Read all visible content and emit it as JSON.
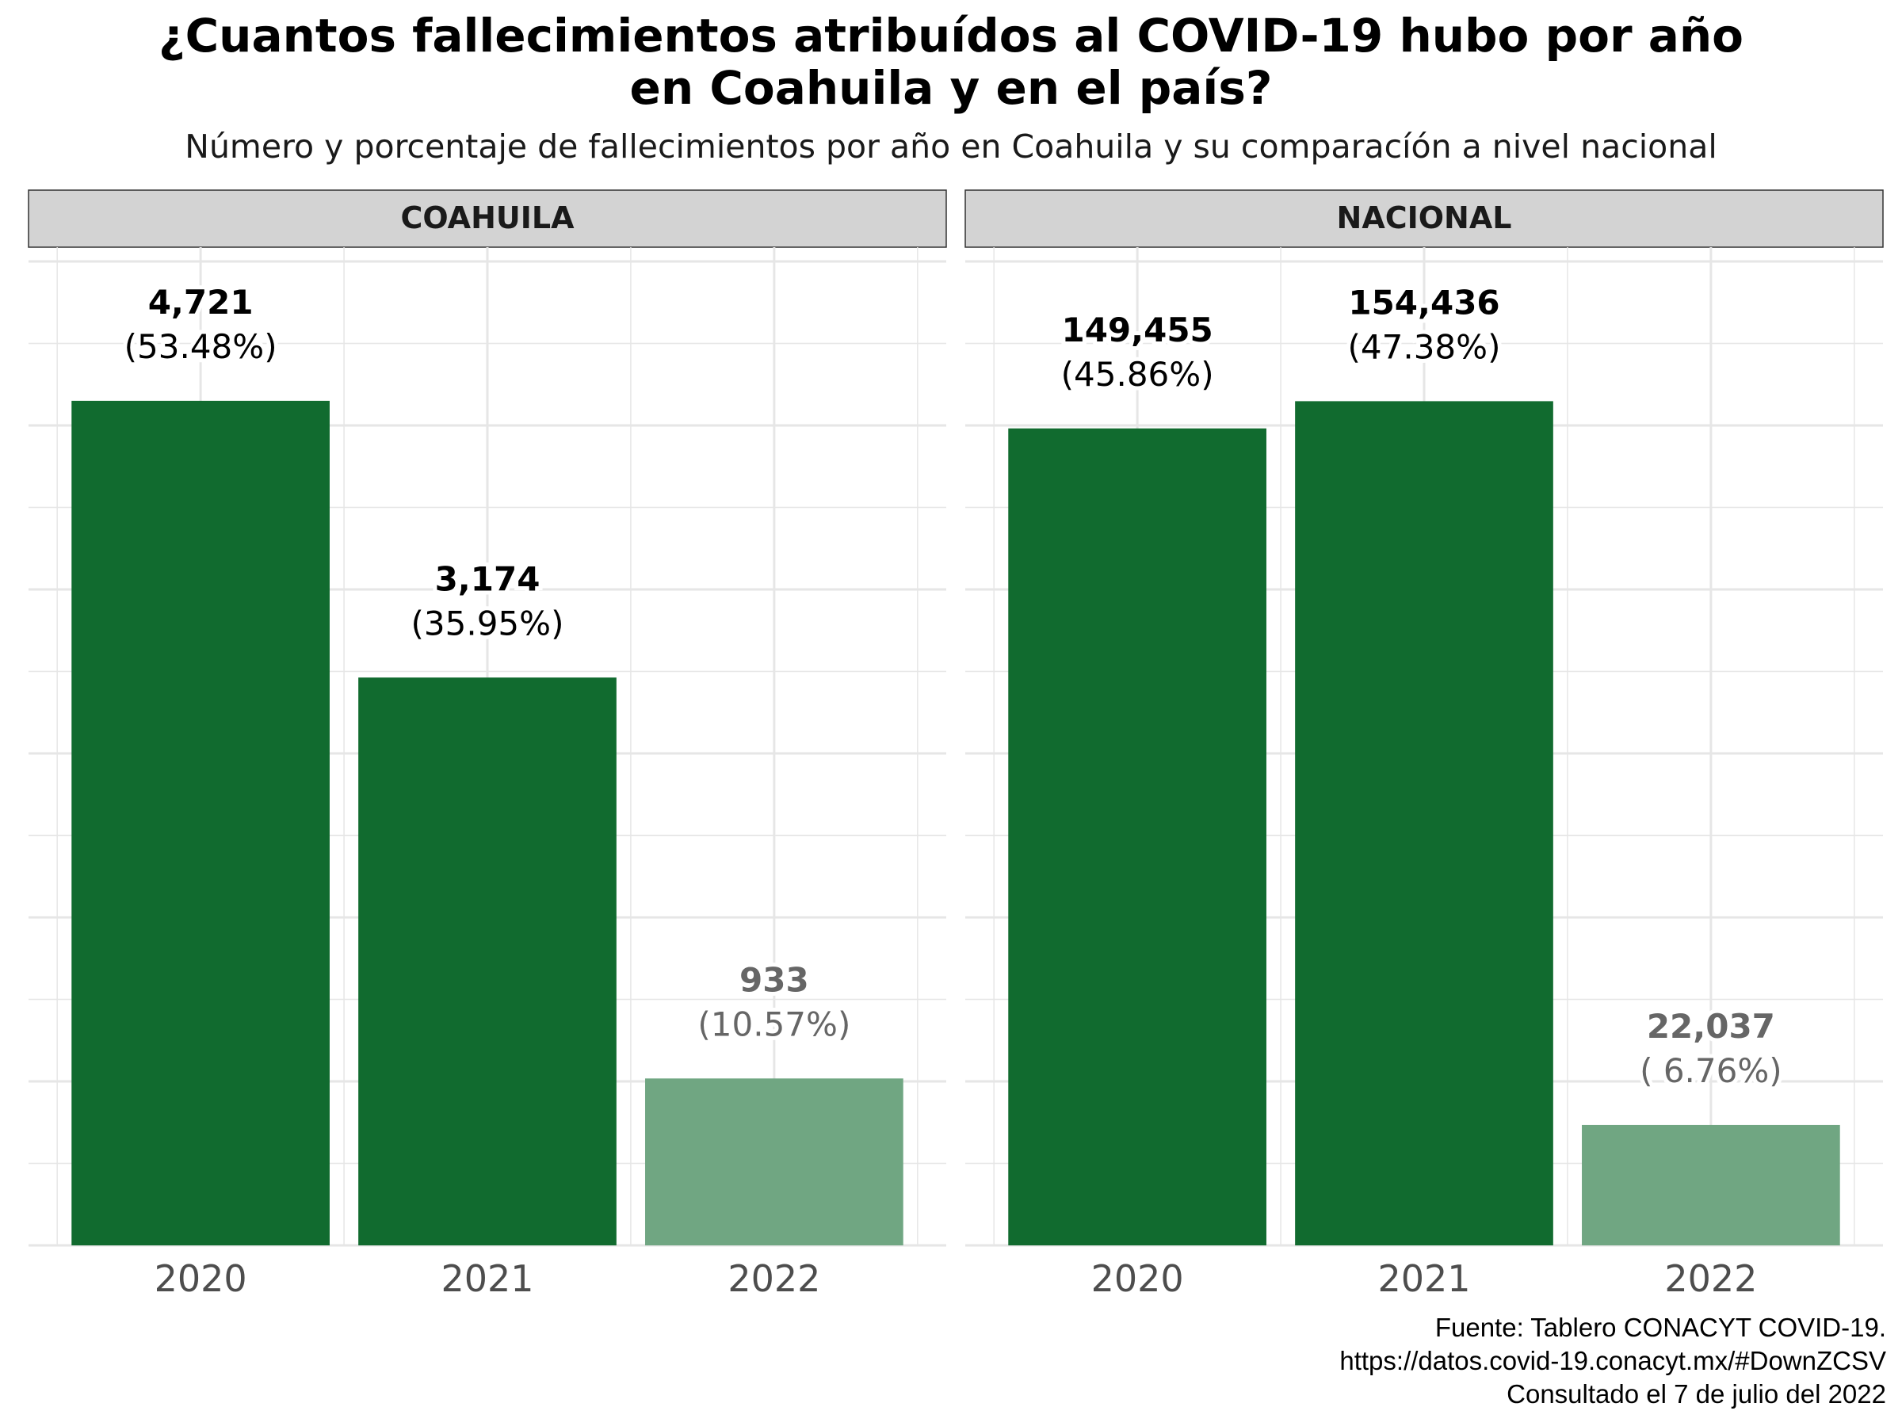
{
  "title_lines": [
    "¿Cuantos fallecimientos atribuídos al COVID-19 hubo por año",
    "en Coahuila y en el país?"
  ],
  "subtitle": "Número y porcentaje de fallecimientos por año en Coahuila y su comparacíón a nivel nacional",
  "caption_lines": [
    "Fuente: Tablero CONACYT COVID-19.",
    "https://datos.covid-19.conacyt.mx/#DownZCSV",
    "Consultado el 7 de julio del 2022"
  ],
  "colors": {
    "bar": "#116B2F",
    "bar_faded": "#70A682",
    "label": "#000000",
    "label_faded": "#666666",
    "strip": "#D3D3D3",
    "grid": "#E6E6E6"
  },
  "chart_data": [
    {
      "type": "bar",
      "facet": "COAHUILA",
      "categories": [
        "2020",
        "2021",
        "2022"
      ],
      "values": [
        4721,
        3174,
        933
      ],
      "value_labels": [
        "4,721",
        "3,174",
        "933"
      ],
      "percent_labels": [
        "(53.48%)",
        "(35.95%)",
        "(10.57%)"
      ],
      "faded": [
        false,
        false,
        true
      ],
      "ylim": [
        0,
        5500
      ],
      "grid": true
    },
    {
      "type": "bar",
      "facet": "NACIONAL",
      "categories": [
        "2020",
        "2021",
        "2022"
      ],
      "values": [
        149455,
        154436,
        22037
      ],
      "value_labels": [
        "149,455",
        "154,436",
        "22,037"
      ],
      "percent_labels": [
        "(45.86%)",
        "( 6.76%)"
      ],
      "percent_labels_all": [
        "(45.86%)",
        "(47.38%)",
        "( 6.76%)"
      ],
      "faded": [
        false,
        false,
        true
      ],
      "ylim": [
        0,
        180000
      ],
      "grid": true
    }
  ]
}
